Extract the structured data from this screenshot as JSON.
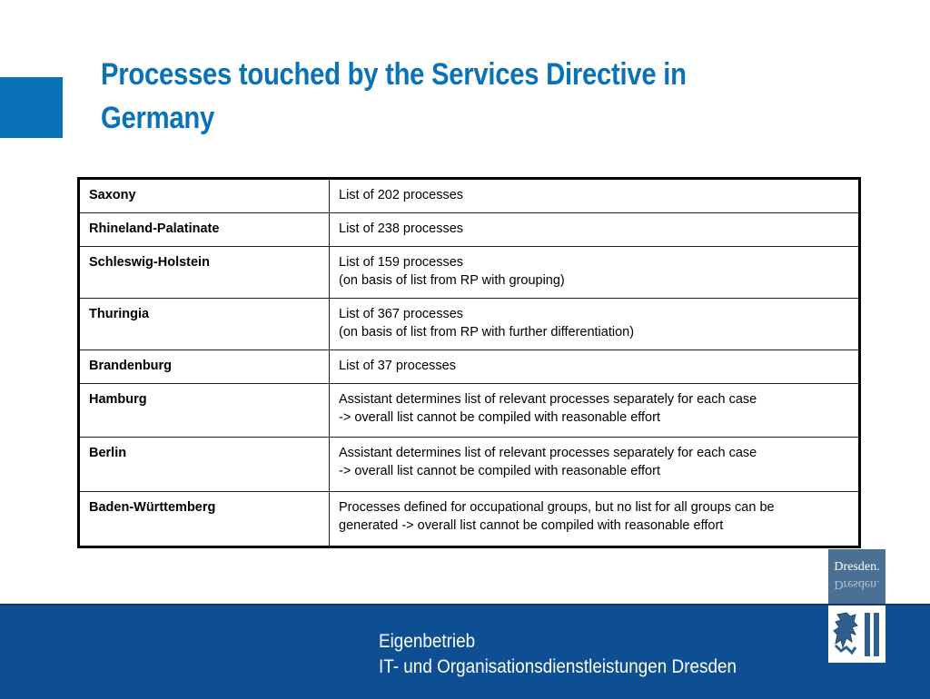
{
  "slide": {
    "title": "Processes touched by the Services Directive in Germany"
  },
  "table": {
    "rows": [
      {
        "state": "Saxony",
        "lines": [
          "List of 202 processes"
        ]
      },
      {
        "state": "Rhineland-Palatinate",
        "lines": [
          "List of 238 processes"
        ]
      },
      {
        "state": "Schleswig-Holstein",
        "lines": [
          "List of 159 processes",
          "(on basis of list from RP with grouping)"
        ]
      },
      {
        "state": "Thuringia",
        "lines": [
          "List of 367 processes",
          "(on basis of list from RP with further differentiation)"
        ]
      },
      {
        "state": "Brandenburg",
        "lines": [
          "List of 37 processes"
        ]
      },
      {
        "state": "Hamburg",
        "lines": [
          "Assistant determines list of relevant processes separately for each case",
          "-> overall list cannot be compiled with reasonable effort"
        ]
      },
      {
        "state": "Berlin",
        "lines": [
          "Assistant determines list of relevant processes separately for each case",
          "-> overall list cannot be compiled with reasonable effort"
        ]
      },
      {
        "state": "Baden-Württemberg",
        "lines": [
          "Processes defined for occupational groups, but no list for all groups can be",
          "generated -> overall list cannot be compiled with reasonable effort"
        ]
      }
    ]
  },
  "footer": {
    "line1": "Eigenbetrieb",
    "line2": "IT- und Organisationsdienstleistungen Dresden"
  },
  "logo": {
    "wordmark": "Dresden.",
    "icon": "dresden-coat-of-arms-icon"
  },
  "colors": {
    "accent_blue": "#0a72b6",
    "footer_blue": "#0d4f92"
  }
}
